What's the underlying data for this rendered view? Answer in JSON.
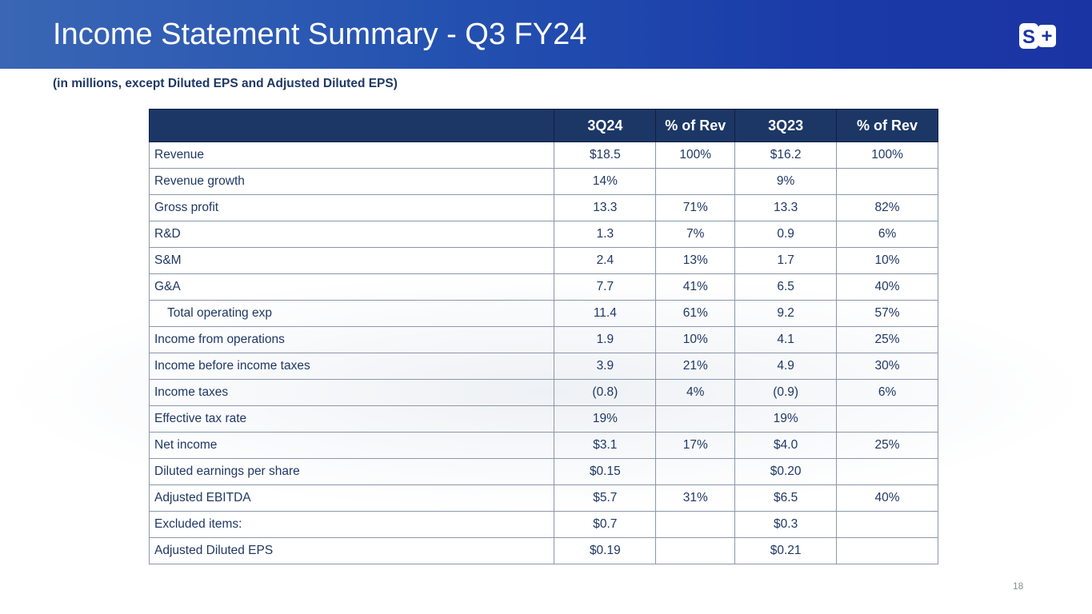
{
  "title": "Income Statement Summary - Q3 FY24",
  "subtitle": "(in millions, except Diluted EPS and Adjusted Diluted EPS)",
  "logo_text": "S+",
  "table": {
    "headers": [
      "",
      "3Q24",
      "% of Rev",
      "3Q23",
      "% of Rev"
    ],
    "rows": [
      {
        "label": "Revenue",
        "c": [
          "$18.5",
          "100%",
          "$16.2",
          "100%"
        ]
      },
      {
        "label": "Revenue growth",
        "c": [
          "14%",
          "",
          "9%",
          ""
        ]
      },
      {
        "label": "Gross profit",
        "c": [
          "13.3",
          "71%",
          "13.3",
          "82%"
        ]
      },
      {
        "label": "R&D",
        "c": [
          "1.3",
          "7%",
          "0.9",
          "6%"
        ]
      },
      {
        "label": "S&M",
        "c": [
          "2.4",
          "13%",
          "1.7",
          "10%"
        ]
      },
      {
        "label": "G&A",
        "c": [
          "7.7",
          "41%",
          "6.5",
          "40%"
        ]
      },
      {
        "label": "Total operating exp",
        "c": [
          "11.4",
          "61%",
          "9.2",
          "57%"
        ],
        "indent": true
      },
      {
        "label": "Income from operations",
        "c": [
          "1.9",
          "10%",
          "4.1",
          "25%"
        ]
      },
      {
        "label": "Income before income taxes",
        "c": [
          "3.9",
          "21%",
          "4.9",
          "30%"
        ]
      },
      {
        "label": "Income taxes",
        "c": [
          "(0.8)",
          "4%",
          "(0.9)",
          "6%"
        ]
      },
      {
        "label": "Effective tax rate",
        "c": [
          "19%",
          "",
          "19%",
          ""
        ]
      },
      {
        "label": "Net income",
        "c": [
          "$3.1",
          "17%",
          "$4.0",
          "25%"
        ]
      },
      {
        "label": "Diluted earnings per share",
        "c": [
          "$0.15",
          "",
          "$0.20",
          ""
        ]
      },
      {
        "label": "Adjusted EBITDA",
        "c": [
          "$5.7",
          "31%",
          "$6.5",
          "40%"
        ]
      },
      {
        "label": "Excluded items:",
        "c": [
          "$0.7",
          "",
          "$0.3",
          ""
        ]
      },
      {
        "label": "Adjusted Diluted EPS",
        "c": [
          "$0.19",
          "",
          "$0.21",
          ""
        ]
      }
    ]
  },
  "page_number": "18",
  "colors": {
    "banner": "#2452b0",
    "header": "#1c3766",
    "text": "#1f3864"
  }
}
